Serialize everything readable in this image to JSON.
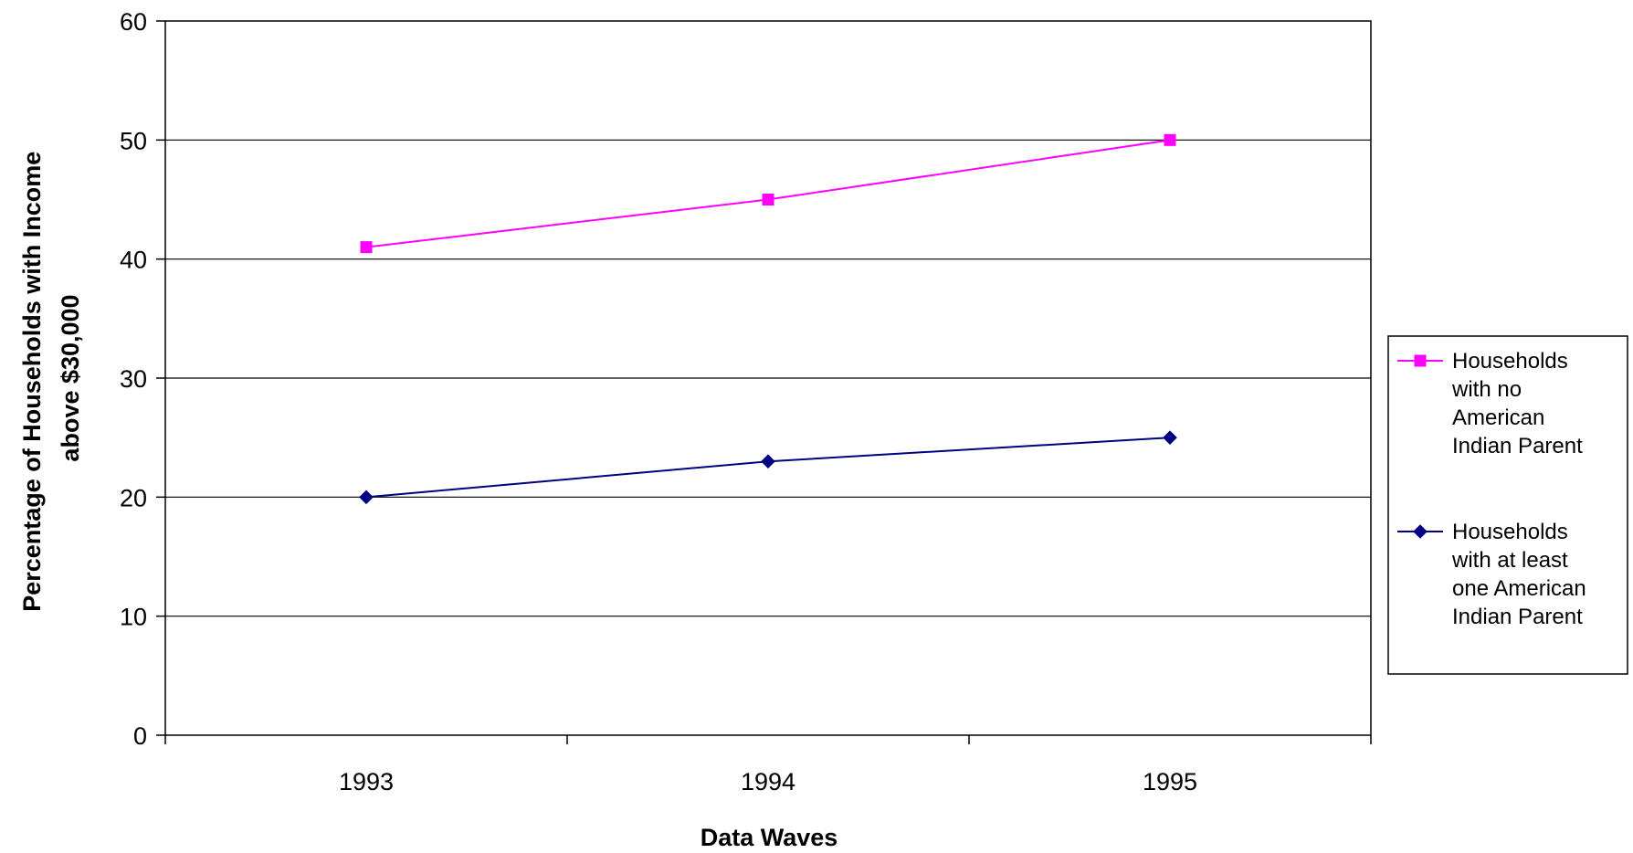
{
  "chart_data": {
    "type": "line",
    "title": "",
    "xlabel": "Data Waves",
    "ylabel": [
      "Percentage of Households with Income",
      "above $30,000"
    ],
    "categories": [
      "1993",
      "1994",
      "1995"
    ],
    "yticks": [
      "0",
      "10",
      "20",
      "30",
      "40",
      "50",
      "60"
    ],
    "ylim": [
      0,
      60
    ],
    "grid": true,
    "legend_position": "right",
    "series": [
      {
        "name": "Households with no American Indian Parent",
        "legend_lines": [
          "Households",
          "with no",
          "American",
          "Indian Parent"
        ],
        "values": [
          41,
          45,
          50
        ],
        "color": "#FF00FF",
        "marker": "square"
      },
      {
        "name": "Households with at least one American Indian Parent",
        "legend_lines": [
          "Households",
          "with at least",
          "one American",
          "Indian Parent"
        ],
        "values": [
          20,
          23,
          25
        ],
        "color": "#000080",
        "marker": "diamond"
      }
    ]
  }
}
